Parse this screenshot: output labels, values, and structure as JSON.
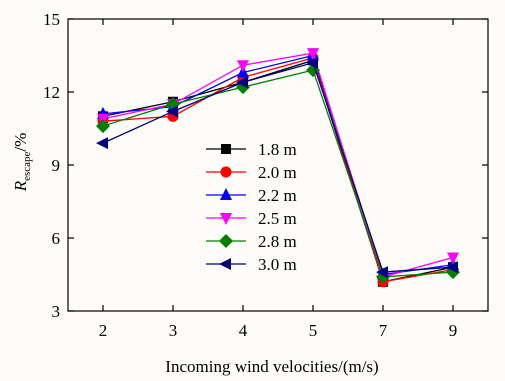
{
  "chart_data": {
    "type": "line",
    "title": "",
    "xlabel": "Incoming wind velocities/(m/s)",
    "ylabel_main": "R",
    "ylabel_sub": "escape",
    "ylabel_suffix": "/%",
    "categories": [
      "2",
      "3",
      "4",
      "5",
      "7",
      "9"
    ],
    "ylim": [
      3,
      15
    ],
    "yticks": [
      3,
      6,
      9,
      12,
      15
    ],
    "grid": false,
    "legend_position": "center",
    "series": [
      {
        "name": "1.8 m",
        "color": "#000000",
        "marker": "square",
        "values": [
          11.0,
          11.6,
          12.4,
          13.3,
          4.2,
          4.8
        ]
      },
      {
        "name": "2.0 m",
        "color": "#ff0000",
        "marker": "circle",
        "values": [
          10.8,
          11.0,
          12.6,
          13.4,
          4.2,
          4.7
        ]
      },
      {
        "name": "2.2 m",
        "color": "#0000ff",
        "marker": "triangle-up",
        "values": [
          11.1,
          11.4,
          12.8,
          13.5,
          4.5,
          4.9
        ]
      },
      {
        "name": "2.5 m",
        "color": "#ff00ff",
        "marker": "triangle-down",
        "values": [
          10.9,
          11.5,
          13.1,
          13.6,
          4.4,
          5.2
        ]
      },
      {
        "name": "2.8 m",
        "color": "#008000",
        "marker": "diamond",
        "values": [
          10.6,
          11.5,
          12.2,
          12.9,
          4.4,
          4.6
        ]
      },
      {
        "name": "3.0 m",
        "color": "#000080",
        "marker": "triangle-left",
        "values": [
          9.9,
          11.2,
          12.4,
          13.2,
          4.6,
          4.8
        ]
      }
    ]
  }
}
